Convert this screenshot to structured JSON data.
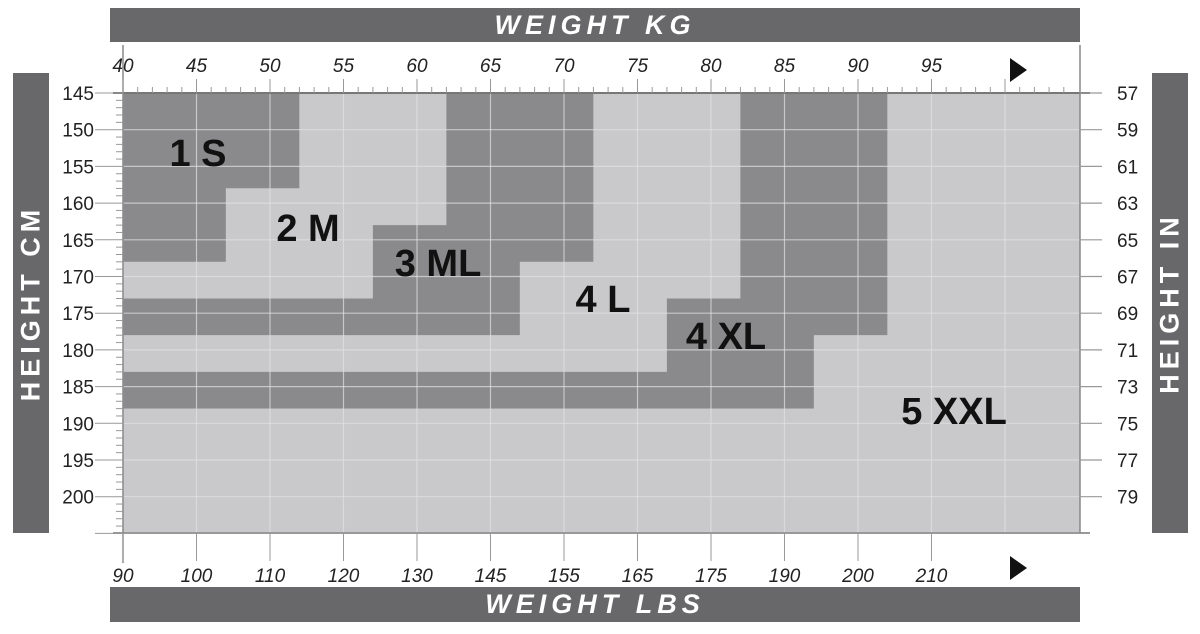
{
  "chart_data": {
    "type": "area",
    "title": "",
    "top_axis_label": "WEIGHT KG",
    "bottom_axis_label": "WEIGHT LBS",
    "left_axis_label": "HEIGHT CM",
    "right_axis_label": "HEIGHT IN",
    "xlim_kg": [
      40,
      105
    ],
    "ylim_cm": [
      145,
      205
    ],
    "kg_ticks": [
      "40",
      "45",
      "50",
      "55",
      "60",
      "65",
      "70",
      "75",
      "80",
      "85",
      "90",
      "95"
    ],
    "lbs_ticks": [
      "90",
      "100",
      "110",
      "120",
      "130",
      "145",
      "155",
      "165",
      "175",
      "190",
      "200",
      "210"
    ],
    "cm_ticks": [
      "145",
      "150",
      "155",
      "160",
      "165",
      "170",
      "175",
      "180",
      "185",
      "190",
      "195",
      "200"
    ],
    "in_ticks": [
      "57",
      "59",
      "61",
      "63",
      "65",
      "67",
      "69",
      "71",
      "73",
      "75",
      "77",
      "79"
    ],
    "grid": true,
    "colors": {
      "dark": "#8a8a8c",
      "light": "#c9c9cb",
      "bar": "#68686a",
      "grid": "#e2e2e4"
    },
    "sizes": [
      {
        "label": "1 S",
        "shade": "dark",
        "polygon_kg_cm": [
          [
            40,
            145
          ],
          [
            52,
            145
          ],
          [
            52,
            158
          ],
          [
            47,
            158
          ],
          [
            47,
            168
          ],
          [
            40,
            168
          ]
        ]
      },
      {
        "label": "2 M",
        "shade": "light",
        "polygon_kg_cm": [
          [
            52,
            145
          ],
          [
            62,
            145
          ],
          [
            62,
            163
          ],
          [
            57,
            163
          ],
          [
            57,
            173
          ],
          [
            40,
            173
          ],
          [
            40,
            168
          ],
          [
            47,
            168
          ],
          [
            47,
            158
          ],
          [
            52,
            158
          ]
        ]
      },
      {
        "label": "3 ML",
        "shade": "dark",
        "polygon_kg_cm": [
          [
            62,
            145
          ],
          [
            72,
            145
          ],
          [
            72,
            168
          ],
          [
            67,
            168
          ],
          [
            67,
            178
          ],
          [
            40,
            178
          ],
          [
            40,
            173
          ],
          [
            57,
            173
          ],
          [
            57,
            163
          ],
          [
            62,
            163
          ]
        ]
      },
      {
        "label": "4 L",
        "shade": "light",
        "polygon_kg_cm": [
          [
            72,
            145
          ],
          [
            82,
            145
          ],
          [
            82,
            173
          ],
          [
            77,
            173
          ],
          [
            77,
            183
          ],
          [
            40,
            183
          ],
          [
            40,
            178
          ],
          [
            67,
            178
          ],
          [
            67,
            168
          ],
          [
            72,
            168
          ]
        ]
      },
      {
        "label": "4 XL",
        "shade": "dark",
        "polygon_kg_cm": [
          [
            82,
            145
          ],
          [
            92,
            145
          ],
          [
            92,
            178
          ],
          [
            87,
            178
          ],
          [
            87,
            188
          ],
          [
            40,
            188
          ],
          [
            40,
            183
          ],
          [
            77,
            183
          ],
          [
            77,
            173
          ],
          [
            82,
            173
          ]
        ]
      },
      {
        "label": "5 XXL",
        "shade": "light",
        "polygon_kg_cm": [
          [
            92,
            145
          ],
          [
            105,
            145
          ],
          [
            105,
            205
          ],
          [
            40,
            205
          ],
          [
            40,
            188
          ],
          [
            87,
            188
          ],
          [
            87,
            178
          ],
          [
            92,
            178
          ]
        ]
      }
    ]
  }
}
